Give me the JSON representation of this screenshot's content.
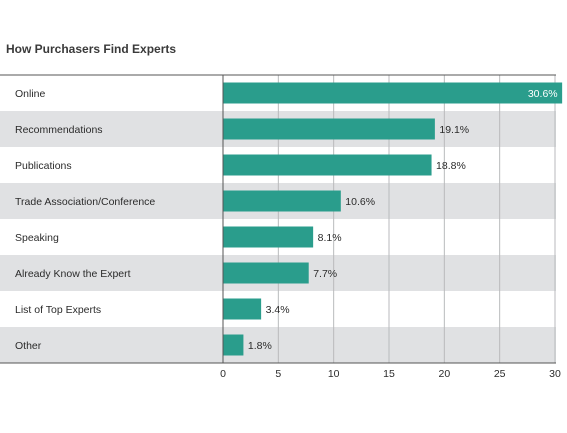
{
  "chart_data": {
    "type": "bar",
    "orientation": "horizontal",
    "title": "How Purchasers Find Experts",
    "categories": [
      "Online",
      "Recommendations",
      "Publications",
      "Trade Association/Conference",
      "Speaking",
      "Already Know the Expert",
      "List of Top Experts",
      "Other"
    ],
    "values": [
      30.6,
      19.1,
      18.8,
      10.6,
      8.1,
      7.7,
      3.4,
      1.8
    ],
    "value_labels": [
      "30.6%",
      "19.1%",
      "18.8%",
      "10.6%",
      "8.1%",
      "7.7%",
      "3.4%",
      "1.8%"
    ],
    "xlim": [
      0,
      30
    ],
    "xticks": [
      0,
      5,
      10,
      15,
      20,
      25,
      30
    ],
    "xlabel": "",
    "ylabel": "",
    "grid": true,
    "bar_color": "#2a9d8c",
    "alt_row_color": "#e0e1e3",
    "text_color": "#2b2b2b",
    "label_inside_color": "#ffffff"
  }
}
